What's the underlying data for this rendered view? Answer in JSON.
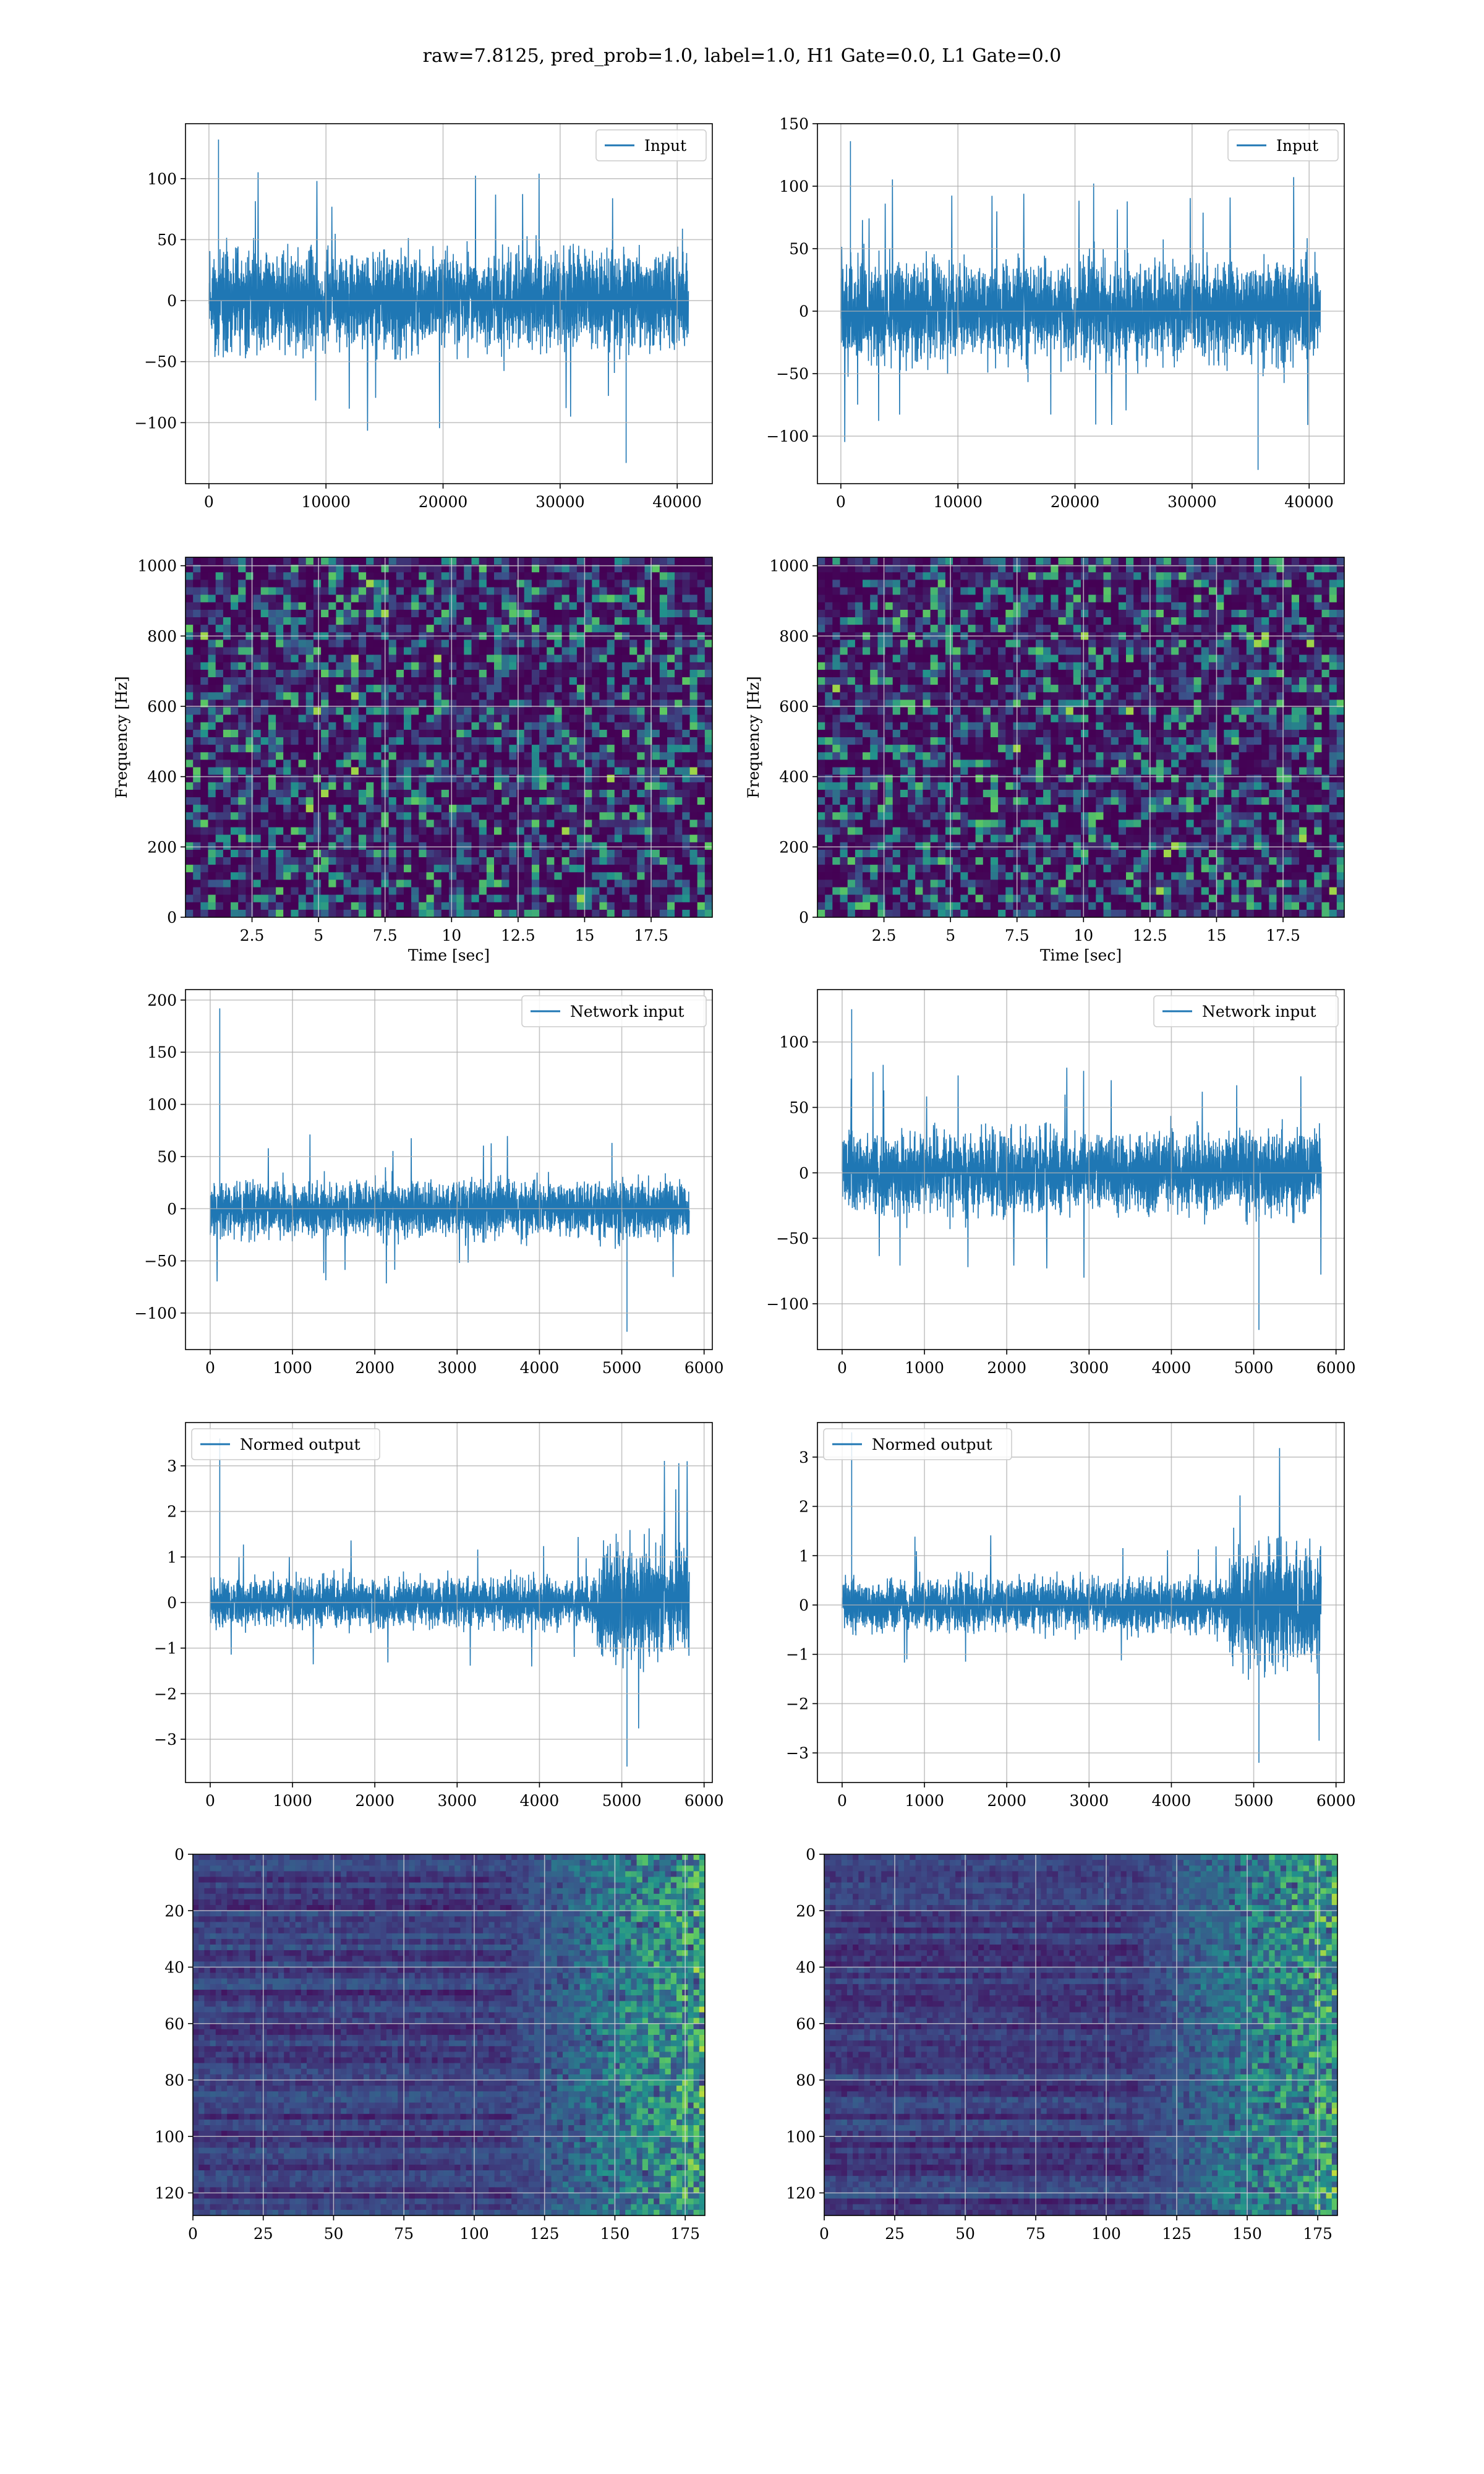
{
  "figure": {
    "suptitle": "raw=7.8125, pred_prob=1.0, label=1.0, H1 Gate=0.0, L1 Gate=0.0"
  },
  "colors": {
    "line": "#1f77b4",
    "grid": "#b0b0b0",
    "spines": "#000000",
    "viridis_dark": "#440154",
    "viridis_mid": "#21918c",
    "viridis_bright": "#fde725"
  },
  "chart_data": [
    {
      "id": "r1c1",
      "type": "line",
      "title": "",
      "xlabel": "",
      "ylabel": "",
      "series": [
        {
          "name": "Input",
          "envelope": {
            "x_start": 0,
            "x_end": 40960,
            "core": [
              -45,
              45
            ],
            "peak_max": 132,
            "peak_min": -133
          }
        }
      ],
      "xlim": [
        -2000,
        43000
      ],
      "ylim": [
        -150,
        145
      ],
      "xticks": [
        0,
        10000,
        20000,
        30000,
        40000
      ],
      "yticks": [
        -100,
        -50,
        0,
        50,
        100
      ],
      "grid": true,
      "legend": "top-right"
    },
    {
      "id": "r1c2",
      "type": "line",
      "title": "",
      "xlabel": "",
      "ylabel": "",
      "series": [
        {
          "name": "Input",
          "envelope": {
            "x_start": 0,
            "x_end": 40960,
            "core": [
              -45,
              45
            ],
            "peak_max": 136,
            "peak_min": -127
          }
        }
      ],
      "xlim": [
        -2000,
        43000
      ],
      "ylim": [
        -138,
        150
      ],
      "xticks": [
        0,
        10000,
        20000,
        30000,
        40000
      ],
      "yticks": [
        -100,
        -50,
        0,
        50,
        100,
        150
      ],
      "grid": true,
      "legend": "top-right"
    },
    {
      "id": "r2c1",
      "type": "heatmap",
      "title": "",
      "xlabel": "Time [sec]",
      "ylabel": "Frequency [Hz]",
      "xlim": [
        0,
        19.8
      ],
      "ylim": [
        0,
        1024
      ],
      "xticks": [
        2.5,
        5.0,
        7.5,
        10.0,
        12.5,
        15.0,
        17.5
      ],
      "yticks": [
        0,
        200,
        400,
        600,
        800,
        1000
      ],
      "colormap": "viridis",
      "grid": true
    },
    {
      "id": "r2c2",
      "type": "heatmap",
      "title": "",
      "xlabel": "Time [sec]",
      "ylabel": "Frequency [Hz]",
      "xlim": [
        0,
        19.8
      ],
      "ylim": [
        0,
        1024
      ],
      "xticks": [
        2.5,
        5.0,
        7.5,
        10.0,
        12.5,
        15.0,
        17.5
      ],
      "yticks": [
        0,
        200,
        400,
        600,
        800,
        1000
      ],
      "colormap": "viridis",
      "grid": true
    },
    {
      "id": "r3c1",
      "type": "line",
      "title": "",
      "xlabel": "",
      "ylabel": "",
      "series": [
        {
          "name": "Network input",
          "envelope": {
            "x_start": 0,
            "x_end": 5820,
            "core": [
              -30,
              30
            ],
            "peak_max": 192,
            "peak_min": -118
          }
        }
      ],
      "xlim": [
        -300,
        6100
      ],
      "ylim": [
        -135,
        210
      ],
      "xticks": [
        0,
        1000,
        2000,
        3000,
        4000,
        5000,
        6000
      ],
      "yticks": [
        -100,
        -50,
        0,
        50,
        100,
        150,
        200
      ],
      "grid": true,
      "legend": "top-right"
    },
    {
      "id": "r3c2",
      "type": "line",
      "title": "",
      "xlabel": "",
      "ylabel": "",
      "series": [
        {
          "name": "Network input",
          "envelope": {
            "x_start": 0,
            "x_end": 5820,
            "core": [
              -35,
              35
            ],
            "peak_max": 125,
            "peak_min": -120
          }
        }
      ],
      "xlim": [
        -300,
        6100
      ],
      "ylim": [
        -135,
        140
      ],
      "xticks": [
        0,
        1000,
        2000,
        3000,
        4000,
        5000,
        6000
      ],
      "yticks": [
        -100,
        -50,
        0,
        50,
        100
      ],
      "grid": true,
      "legend": "top-right"
    },
    {
      "id": "r4c1",
      "type": "line",
      "title": "",
      "xlabel": "",
      "ylabel": "",
      "series": [
        {
          "name": "Normed output",
          "envelope": {
            "x_start": 0,
            "x_end": 5820,
            "core": [
              -0.6,
              0.6
            ],
            "burst_start": 4700,
            "peak_max": 3.6,
            "peak_min": -3.6
          }
        }
      ],
      "xlim": [
        -300,
        6100
      ],
      "ylim": [
        -3.95,
        3.95
      ],
      "xticks": [
        0,
        1000,
        2000,
        3000,
        4000,
        5000,
        6000
      ],
      "yticks": [
        -3,
        -2,
        -1,
        0,
        1,
        2,
        3
      ],
      "grid": true,
      "legend": "top-left"
    },
    {
      "id": "r4c2",
      "type": "line",
      "title": "",
      "xlabel": "",
      "ylabel": "",
      "series": [
        {
          "name": "Normed output",
          "envelope": {
            "x_start": 0,
            "x_end": 5820,
            "core": [
              -0.6,
              0.6
            ],
            "burst_start": 4700,
            "peak_max": 3.5,
            "peak_min": -3.2
          }
        }
      ],
      "xlim": [
        -300,
        6100
      ],
      "ylim": [
        -3.6,
        3.7
      ],
      "xticks": [
        0,
        1000,
        2000,
        3000,
        4000,
        5000,
        6000
      ],
      "yticks": [
        -3,
        -2,
        -1,
        0,
        1,
        2,
        3
      ],
      "grid": true,
      "legend": "top-left"
    },
    {
      "id": "r5c1",
      "type": "heatmap",
      "title": "",
      "xlabel": "",
      "ylabel": "",
      "xlim": [
        0,
        182
      ],
      "ylim": [
        128,
        0
      ],
      "xticks": [
        0,
        25,
        50,
        75,
        100,
        125,
        150,
        175
      ],
      "yticks": [
        0,
        20,
        40,
        60,
        80,
        100,
        120
      ],
      "colormap": "viridis",
      "grid": true
    },
    {
      "id": "r5c2",
      "type": "heatmap",
      "title": "",
      "xlabel": "",
      "ylabel": "",
      "xlim": [
        0,
        182
      ],
      "ylim": [
        128,
        0
      ],
      "xticks": [
        0,
        25,
        50,
        75,
        100,
        125,
        150,
        175
      ],
      "yticks": [
        0,
        20,
        40,
        60,
        80,
        100,
        120
      ],
      "colormap": "viridis",
      "grid": true
    }
  ]
}
